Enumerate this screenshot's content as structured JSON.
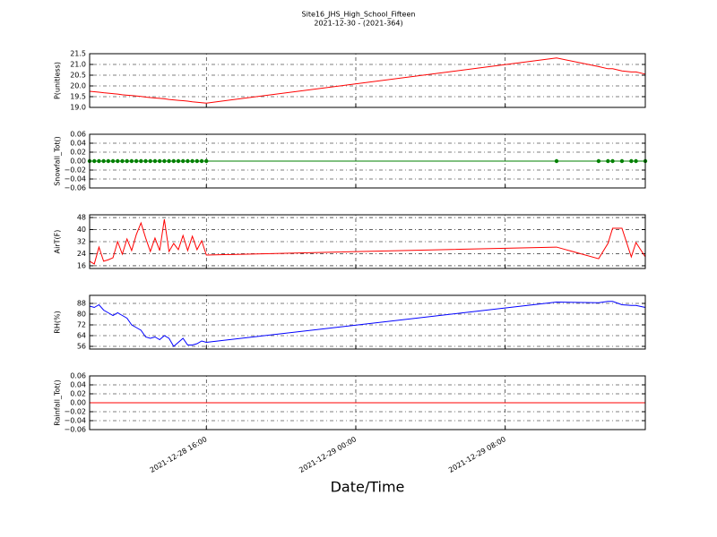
{
  "chart_data": [
    {
      "type": "line",
      "title": "Site16_JHS_High_School_Fifteen",
      "subtitle": "2021-12-30 - (2021-364)",
      "ylabel": "P(unitless)",
      "x": [
        "2021-12-28 09:45",
        "2021-12-28 10:00",
        "2021-12-28 10:15",
        "2021-12-28 10:30",
        "2021-12-28 10:45",
        "2021-12-28 11:00",
        "2021-12-28 11:15",
        "2021-12-28 11:30",
        "2021-12-28 11:45",
        "2021-12-28 12:00",
        "2021-12-28 12:15",
        "2021-12-28 12:30",
        "2021-12-28 12:45",
        "2021-12-28 13:00",
        "2021-12-28 13:15",
        "2021-12-28 13:30",
        "2021-12-28 13:45",
        "2021-12-28 14:00",
        "2021-12-28 14:15",
        "2021-12-28 14:30",
        "2021-12-28 14:45",
        "2021-12-28 15:00",
        "2021-12-28 15:15",
        "2021-12-28 15:30",
        "2021-12-28 15:45",
        "2021-12-28 16:00",
        "2021-12-29 10:45",
        "2021-12-29 13:00",
        "2021-12-29 13:30",
        "2021-12-29 13:45",
        "2021-12-29 14:15",
        "2021-12-29 14:45",
        "2021-12-29 15:00",
        "2021-12-29 15:30"
      ],
      "series": [
        {
          "color": "#ff0000",
          "values": [
            19.75,
            19.73,
            19.71,
            19.68,
            19.66,
            19.64,
            19.62,
            19.59,
            19.57,
            19.55,
            19.53,
            19.51,
            19.48,
            19.46,
            19.44,
            19.42,
            19.4,
            19.37,
            19.35,
            19.33,
            19.31,
            19.29,
            19.26,
            19.24,
            19.22,
            19.2,
            21.3,
            20.9,
            20.8,
            20.8,
            20.7,
            20.65,
            20.65,
            20.55
          ]
        }
      ],
      "xlim": [
        "2021-12-28 09:45",
        "2021-12-29 15:30"
      ],
      "xticks": [
        "2021-12-28 16:00",
        "2021-12-29 00:00",
        "2021-12-29 08:00"
      ],
      "ylim": [
        19.0,
        21.5
      ],
      "yticks": [
        {
          "value": 19,
          "label": "19.0"
        },
        {
          "value": 19.5,
          "label": "19.5"
        },
        {
          "value": 20,
          "label": "20.0"
        },
        {
          "value": 20.5,
          "label": "20.5"
        },
        {
          "value": 21,
          "label": "21.0"
        },
        {
          "value": 21.5,
          "label": "21.5"
        }
      ],
      "grid": true
    },
    {
      "type": "line",
      "ylabel": "Snowfall_Tot()",
      "x": [
        "2021-12-28 09:45",
        "2021-12-28 10:00",
        "2021-12-28 10:15",
        "2021-12-28 10:30",
        "2021-12-28 10:45",
        "2021-12-28 11:00",
        "2021-12-28 11:15",
        "2021-12-28 11:30",
        "2021-12-28 11:45",
        "2021-12-28 12:00",
        "2021-12-28 12:15",
        "2021-12-28 12:30",
        "2021-12-28 12:45",
        "2021-12-28 13:00",
        "2021-12-28 13:15",
        "2021-12-28 13:30",
        "2021-12-28 13:45",
        "2021-12-28 14:00",
        "2021-12-28 14:15",
        "2021-12-28 14:30",
        "2021-12-28 14:45",
        "2021-12-28 15:00",
        "2021-12-28 15:15",
        "2021-12-28 15:30",
        "2021-12-28 15:45",
        "2021-12-28 16:00",
        "2021-12-29 10:45",
        "2021-12-29 13:00",
        "2021-12-29 13:30",
        "2021-12-29 13:45",
        "2021-12-29 14:15",
        "2021-12-29 14:45",
        "2021-12-29 15:00",
        "2021-12-29 15:30"
      ],
      "series": [
        {
          "color": "#008000",
          "markers": true,
          "values": [
            0,
            0,
            0,
            0,
            0,
            0,
            0,
            0,
            0,
            0,
            0,
            0,
            0,
            0,
            0,
            0,
            0,
            0,
            0,
            0,
            0,
            0,
            0,
            0,
            0,
            0,
            0,
            0,
            0,
            0,
            0,
            0,
            0,
            0
          ]
        }
      ],
      "xlim": [
        "2021-12-28 09:45",
        "2021-12-29 15:30"
      ],
      "xticks": [
        "2021-12-28 16:00",
        "2021-12-29 00:00",
        "2021-12-29 08:00"
      ],
      "ylim": [
        -0.06,
        0.06
      ],
      "yticks": [
        {
          "value": -0.06,
          "label": "−0.06"
        },
        {
          "value": -0.04,
          "label": "−0.04"
        },
        {
          "value": -0.02,
          "label": "−0.02"
        },
        {
          "value": 0,
          "label": "0.00"
        },
        {
          "value": 0.02,
          "label": "0.02"
        },
        {
          "value": 0.04,
          "label": "0.04"
        },
        {
          "value": 0.06,
          "label": "0.06"
        }
      ],
      "grid": true
    },
    {
      "type": "line",
      "ylabel": "AirT(F)",
      "x": [
        "2021-12-28 09:45",
        "2021-12-28 10:00",
        "2021-12-28 10:15",
        "2021-12-28 10:30",
        "2021-12-28 10:45",
        "2021-12-28 11:00",
        "2021-12-28 11:15",
        "2021-12-28 11:30",
        "2021-12-28 11:45",
        "2021-12-28 12:00",
        "2021-12-28 12:15",
        "2021-12-28 12:30",
        "2021-12-28 12:45",
        "2021-12-28 13:00",
        "2021-12-28 13:15",
        "2021-12-28 13:30",
        "2021-12-28 13:45",
        "2021-12-28 14:00",
        "2021-12-28 14:15",
        "2021-12-28 14:30",
        "2021-12-28 14:45",
        "2021-12-28 15:00",
        "2021-12-28 15:15",
        "2021-12-28 15:30",
        "2021-12-28 15:45",
        "2021-12-28 16:00",
        "2021-12-29 10:45",
        "2021-12-29 13:00",
        "2021-12-29 13:30",
        "2021-12-29 13:45",
        "2021-12-29 14:15",
        "2021-12-29 14:45",
        "2021-12-29 15:00",
        "2021-12-29 15:30"
      ],
      "series": [
        {
          "color": "#ff0000",
          "values": [
            19.0,
            17.2,
            28.4,
            19.0,
            20.0,
            21.3,
            32.0,
            23.7,
            33.8,
            26.1,
            36.7,
            44.4,
            34.4,
            25.5,
            34.4,
            26.1,
            46.8,
            25.5,
            30.8,
            26.7,
            36.1,
            26.1,
            35.6,
            26.7,
            32.6,
            23.1,
            28.4,
            20.7,
            30.8,
            40.9,
            40.9,
            21.9,
            31.4,
            21.9
          ]
        }
      ],
      "xlim": [
        "2021-12-28 09:45",
        "2021-12-29 15:30"
      ],
      "xticks": [
        "2021-12-28 16:00",
        "2021-12-29 00:00",
        "2021-12-29 08:00"
      ],
      "ylim": [
        14.2,
        49.8
      ],
      "yticks": [
        16,
        24,
        32,
        40,
        48
      ],
      "grid": true
    },
    {
      "type": "line",
      "ylabel": "RH(%)",
      "x": [
        "2021-12-28 09:45",
        "2021-12-28 10:00",
        "2021-12-28 10:15",
        "2021-12-28 10:30",
        "2021-12-28 10:45",
        "2021-12-28 11:00",
        "2021-12-28 11:15",
        "2021-12-28 11:30",
        "2021-12-28 11:45",
        "2021-12-28 12:00",
        "2021-12-28 12:15",
        "2021-12-28 12:30",
        "2021-12-28 12:45",
        "2021-12-28 13:00",
        "2021-12-28 13:15",
        "2021-12-28 13:30",
        "2021-12-28 13:45",
        "2021-12-28 14:00",
        "2021-12-28 14:15",
        "2021-12-28 14:30",
        "2021-12-28 14:45",
        "2021-12-28 15:00",
        "2021-12-28 15:15",
        "2021-12-28 15:30",
        "2021-12-28 15:45",
        "2021-12-28 16:00",
        "2021-12-29 10:45",
        "2021-12-29 13:00",
        "2021-12-29 13:30",
        "2021-12-29 13:45",
        "2021-12-29 14:15",
        "2021-12-29 14:45",
        "2021-12-29 15:00",
        "2021-12-29 15:30"
      ],
      "series": [
        {
          "color": "#0000ff",
          "values": [
            86,
            85,
            87,
            83,
            81,
            79,
            81,
            79,
            77,
            72,
            70,
            68,
            63,
            62,
            63,
            61,
            64,
            62,
            56,
            59,
            62,
            57,
            57,
            58,
            60,
            59,
            89,
            88.5,
            89.5,
            89.5,
            87,
            86.5,
            86.5,
            85
          ]
        }
      ],
      "xlim": [
        "2021-12-28 09:45",
        "2021-12-29 15:30"
      ],
      "xticks": [
        "2021-12-28 16:00",
        "2021-12-29 00:00",
        "2021-12-29 08:00"
      ],
      "ylim": [
        54,
        94
      ],
      "yticks": [
        56,
        64,
        72,
        80,
        88
      ],
      "grid": true
    },
    {
      "type": "line",
      "ylabel": "Rainfall_Tot()",
      "xlabel": "Date/Time",
      "x": [
        "2021-12-28 09:45",
        "2021-12-28 10:00",
        "2021-12-28 10:15",
        "2021-12-28 10:30",
        "2021-12-28 10:45",
        "2021-12-28 11:00",
        "2021-12-28 11:15",
        "2021-12-28 11:30",
        "2021-12-28 11:45",
        "2021-12-28 12:00",
        "2021-12-28 12:15",
        "2021-12-28 12:30",
        "2021-12-28 12:45",
        "2021-12-28 13:00",
        "2021-12-28 13:15",
        "2021-12-28 13:30",
        "2021-12-28 13:45",
        "2021-12-28 14:00",
        "2021-12-28 14:15",
        "2021-12-28 14:30",
        "2021-12-28 14:45",
        "2021-12-28 15:00",
        "2021-12-28 15:15",
        "2021-12-28 15:30",
        "2021-12-28 15:45",
        "2021-12-28 16:00",
        "2021-12-29 10:45",
        "2021-12-29 13:00",
        "2021-12-29 13:30",
        "2021-12-29 13:45",
        "2021-12-29 14:15",
        "2021-12-29 14:45",
        "2021-12-29 15:00",
        "2021-12-29 15:30"
      ],
      "series": [
        {
          "color": "#ff0000",
          "values": [
            0,
            0,
            0,
            0,
            0,
            0,
            0,
            0,
            0,
            0,
            0,
            0,
            0,
            0,
            0,
            0,
            0,
            0,
            0,
            0,
            0,
            0,
            0,
            0,
            0,
            0,
            0,
            0,
            0,
            0,
            0,
            0,
            0,
            0
          ]
        }
      ],
      "xlim": [
        "2021-12-28 09:45",
        "2021-12-29 15:30"
      ],
      "xticks": [
        "2021-12-28 16:00",
        "2021-12-29 00:00",
        "2021-12-29 08:00"
      ],
      "ylim": [
        -0.06,
        0.06
      ],
      "yticks": [
        {
          "value": -0.06,
          "label": "−0.06"
        },
        {
          "value": -0.04,
          "label": "−0.04"
        },
        {
          "value": -0.02,
          "label": "−0.02"
        },
        {
          "value": 0,
          "label": "0.00"
        },
        {
          "value": 0.02,
          "label": "0.02"
        },
        {
          "value": 0.04,
          "label": "0.04"
        },
        {
          "value": 0.06,
          "label": "0.06"
        }
      ],
      "grid": true
    }
  ]
}
